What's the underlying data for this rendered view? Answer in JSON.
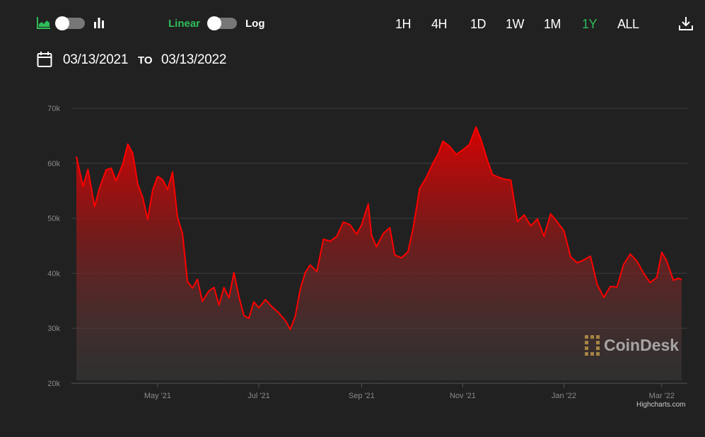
{
  "toolbar": {
    "chart_type_area_icon": "area-chart-icon",
    "chart_type_bar_icon": "bar-chart-icon",
    "scale_linear_label": "Linear",
    "scale_log_label": "Log",
    "ranges": [
      "1H",
      "4H",
      "1D",
      "1W",
      "1M",
      "1Y",
      "ALL"
    ],
    "active_range": "1Y",
    "download_icon": "download-icon",
    "accent_color": "#2ebd59"
  },
  "date_range": {
    "calendar_icon": "calendar-icon",
    "from": "03/13/2021",
    "to_label": "TO",
    "to": "03/13/2022"
  },
  "watermark": "CoinDesk",
  "credit": "Highcharts.com",
  "chart_data": {
    "type": "area",
    "title": "",
    "xlabel": "",
    "ylabel": "",
    "ylim": [
      20000,
      70000
    ],
    "yticks": [
      20000,
      30000,
      40000,
      50000,
      60000,
      70000
    ],
    "ytick_labels": [
      "20k",
      "30k",
      "40k",
      "50k",
      "60k",
      "70k"
    ],
    "xtick_labels": [
      {
        "date": "2021-05-01",
        "label": "May '21"
      },
      {
        "date": "2021-07-01",
        "label": "Jul '21"
      },
      {
        "date": "2021-09-01",
        "label": "Sep '21"
      },
      {
        "date": "2021-11-01",
        "label": "Nov '21"
      },
      {
        "date": "2022-01-01",
        "label": "Jan '22"
      },
      {
        "date": "2022-03-01",
        "label": "Mar '22"
      }
    ],
    "xlim": [
      "2021-03-13",
      "2022-03-13"
    ],
    "grid": true,
    "line_color": "#ff0000",
    "series": [
      {
        "x": [
          "2021-03-13",
          "2021-03-17",
          "2021-03-20",
          "2021-03-24",
          "2021-03-27",
          "2021-03-31",
          "2021-04-03",
          "2021-04-06",
          "2021-04-10",
          "2021-04-13",
          "2021-04-16",
          "2021-04-19",
          "2021-04-22",
          "2021-04-25",
          "2021-04-28",
          "2021-05-01",
          "2021-05-04",
          "2021-05-07",
          "2021-05-10",
          "2021-05-13",
          "2021-05-16",
          "2021-05-19",
          "2021-05-22",
          "2021-05-25",
          "2021-05-28",
          "2021-06-01",
          "2021-06-04",
          "2021-06-07",
          "2021-06-10",
          "2021-06-13",
          "2021-06-16",
          "2021-06-19",
          "2021-06-22",
          "2021-06-25",
          "2021-06-28",
          "2021-07-01",
          "2021-07-05",
          "2021-07-09",
          "2021-07-13",
          "2021-07-17",
          "2021-07-20",
          "2021-07-23",
          "2021-07-26",
          "2021-07-29",
          "2021-08-01",
          "2021-08-05",
          "2021-08-09",
          "2021-08-13",
          "2021-08-17",
          "2021-08-21",
          "2021-08-25",
          "2021-08-29",
          "2021-09-01",
          "2021-09-05",
          "2021-09-07",
          "2021-09-10",
          "2021-09-14",
          "2021-09-18",
          "2021-09-21",
          "2021-09-25",
          "2021-09-29",
          "2021-10-02",
          "2021-10-06",
          "2021-10-10",
          "2021-10-14",
          "2021-10-17",
          "2021-10-20",
          "2021-10-24",
          "2021-10-28",
          "2021-11-01",
          "2021-11-05",
          "2021-11-09",
          "2021-11-12",
          "2021-11-16",
          "2021-11-19",
          "2021-11-23",
          "2021-11-26",
          "2021-11-30",
          "2021-12-04",
          "2021-12-08",
          "2021-12-12",
          "2021-12-16",
          "2021-12-20",
          "2021-12-24",
          "2021-12-28",
          "2022-01-01",
          "2022-01-05",
          "2022-01-09",
          "2022-01-13",
          "2022-01-17",
          "2022-01-21",
          "2022-01-25",
          "2022-01-29",
          "2022-02-02",
          "2022-02-06",
          "2022-02-10",
          "2022-02-14",
          "2022-02-18",
          "2022-02-22",
          "2022-02-26",
          "2022-03-01",
          "2022-03-04",
          "2022-03-08",
          "2022-03-11",
          "2022-03-13"
        ],
        "y": [
          61200,
          55800,
          58900,
          52100,
          55500,
          58800,
          59100,
          56800,
          59900,
          63500,
          61800,
          56200,
          53800,
          49800,
          55100,
          57600,
          57000,
          55200,
          58400,
          50100,
          47200,
          38500,
          37300,
          38900,
          34900,
          36800,
          37400,
          34200,
          37400,
          35500,
          40100,
          35800,
          32300,
          31800,
          34800,
          33700,
          35200,
          33900,
          32800,
          31400,
          29800,
          32200,
          37100,
          40100,
          41500,
          40300,
          46200,
          45800,
          46700,
          49300,
          48800,
          47100,
          48800,
          52600,
          46900,
          44800,
          47200,
          48300,
          43300,
          42800,
          43900,
          48100,
          55400,
          57400,
          60000,
          61600,
          64000,
          63100,
          61600,
          62400,
          63400,
          66600,
          64300,
          60400,
          57900,
          57400,
          57100,
          56900,
          49400,
          50600,
          48600,
          49900,
          46700,
          50800,
          49300,
          47700,
          43000,
          41900,
          42400,
          43100,
          38000,
          35600,
          37600,
          37500,
          41600,
          43500,
          42200,
          40000,
          38300,
          39200,
          43800,
          42200,
          38700,
          39100,
          38800
        ]
      }
    ]
  }
}
